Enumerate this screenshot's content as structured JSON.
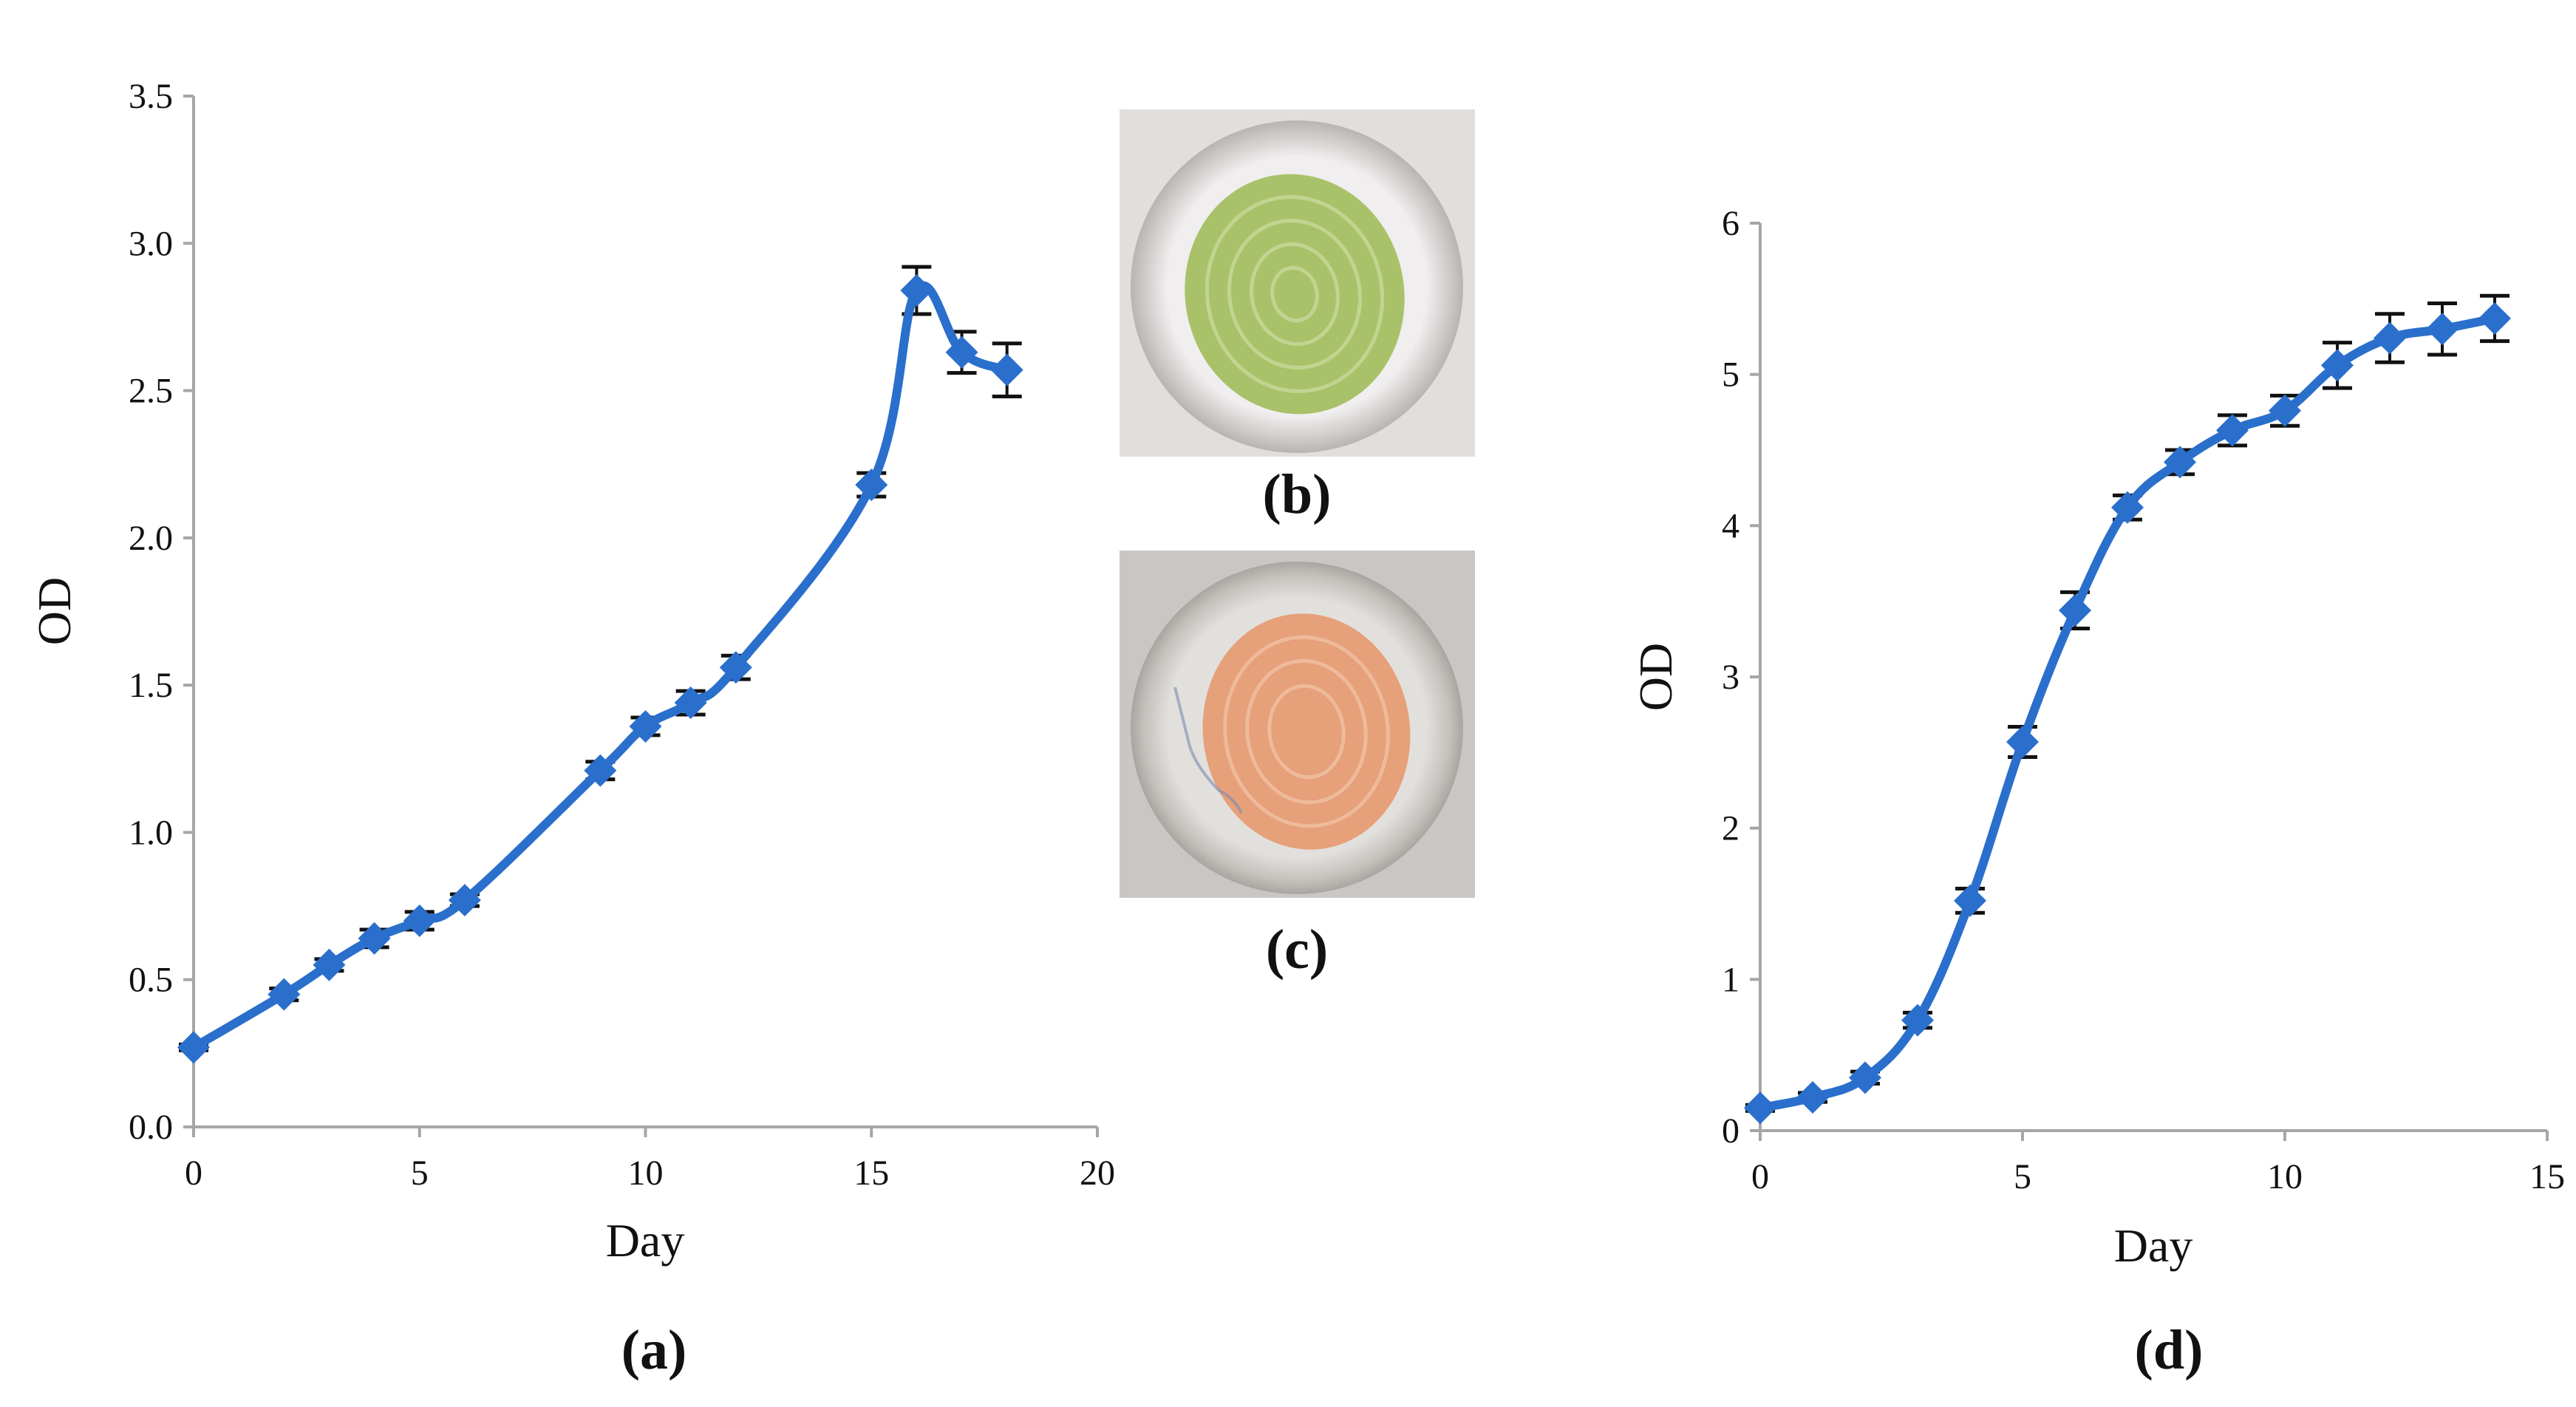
{
  "colors": {
    "series": "#2a6fcc",
    "axis": "#a6a6a6",
    "error_bar": "#111111",
    "text": "#111111"
  },
  "chart_data": [
    {
      "panel": "(a)",
      "type": "line",
      "title": "",
      "xlabel": "Day",
      "ylabel": "OD",
      "xlim": [
        0,
        20
      ],
      "ylim": [
        0,
        3.5
      ],
      "xticks": [
        0,
        5,
        10,
        15,
        20
      ],
      "xtick_labels": [
        "0",
        "5",
        "10",
        "15",
        "20"
      ],
      "yticks": [
        0,
        0.5,
        1,
        1.5,
        2,
        2.5,
        3,
        3.5
      ],
      "ytick_labels": [
        "0.0",
        "0.5",
        "1.0",
        "1.5",
        "2.0",
        "2.5",
        "3.0",
        "3.5"
      ],
      "grid": false,
      "series": [
        {
          "name": "OD",
          "marker": "diamond",
          "x": [
            0,
            2,
            3,
            4,
            5,
            6,
            9,
            10,
            11,
            12,
            15,
            16,
            17,
            18
          ],
          "y": [
            0.27,
            0.45,
            0.55,
            0.64,
            0.7,
            0.77,
            1.21,
            1.36,
            1.44,
            1.56,
            2.18,
            2.84,
            2.63,
            2.57
          ],
          "error": [
            0.01,
            0.02,
            0.02,
            0.03,
            0.03,
            0.02,
            0.03,
            0.03,
            0.04,
            0.04,
            0.04,
            0.08,
            0.07,
            0.09
          ]
        }
      ]
    },
    {
      "panel": "(d)",
      "type": "line",
      "title": "",
      "xlabel": "Day",
      "ylabel": "OD",
      "xlim": [
        0,
        15
      ],
      "ylim": [
        0,
        6
      ],
      "xticks": [
        0,
        5,
        10,
        15
      ],
      "xtick_labels": [
        "0",
        "5",
        "10",
        "15"
      ],
      "yticks": [
        0,
        1,
        2,
        3,
        4,
        5,
        6
      ],
      "ytick_labels": [
        "0",
        "1",
        "2",
        "3",
        "4",
        "5",
        "6"
      ],
      "grid": false,
      "series": [
        {
          "name": "OD",
          "marker": "diamond",
          "x": [
            0,
            1,
            2,
            3,
            4,
            5,
            6,
            7,
            8,
            9,
            10,
            11,
            12,
            13,
            14
          ],
          "y": [
            0.15,
            0.22,
            0.35,
            0.73,
            1.52,
            2.57,
            3.44,
            4.12,
            4.42,
            4.63,
            4.76,
            5.06,
            5.24,
            5.3,
            5.37
          ],
          "error": [
            0.02,
            0.03,
            0.04,
            0.05,
            0.08,
            0.1,
            0.12,
            0.08,
            0.08,
            0.1,
            0.1,
            0.15,
            0.16,
            0.17,
            0.15
          ]
        }
      ]
    }
  ],
  "photos": [
    {
      "label": "(b)",
      "subject": "green-colony-petri-dish",
      "dish_color": "#c9c6c3",
      "colony_color": "#a9c26a",
      "background_color": "#e2dede"
    },
    {
      "label": "(c)",
      "subject": "orange-colony-petri-dish",
      "dish_color": "#c7c5c1",
      "colony_color": "#e6a07a",
      "background_color": "#c9c7c3"
    }
  ]
}
